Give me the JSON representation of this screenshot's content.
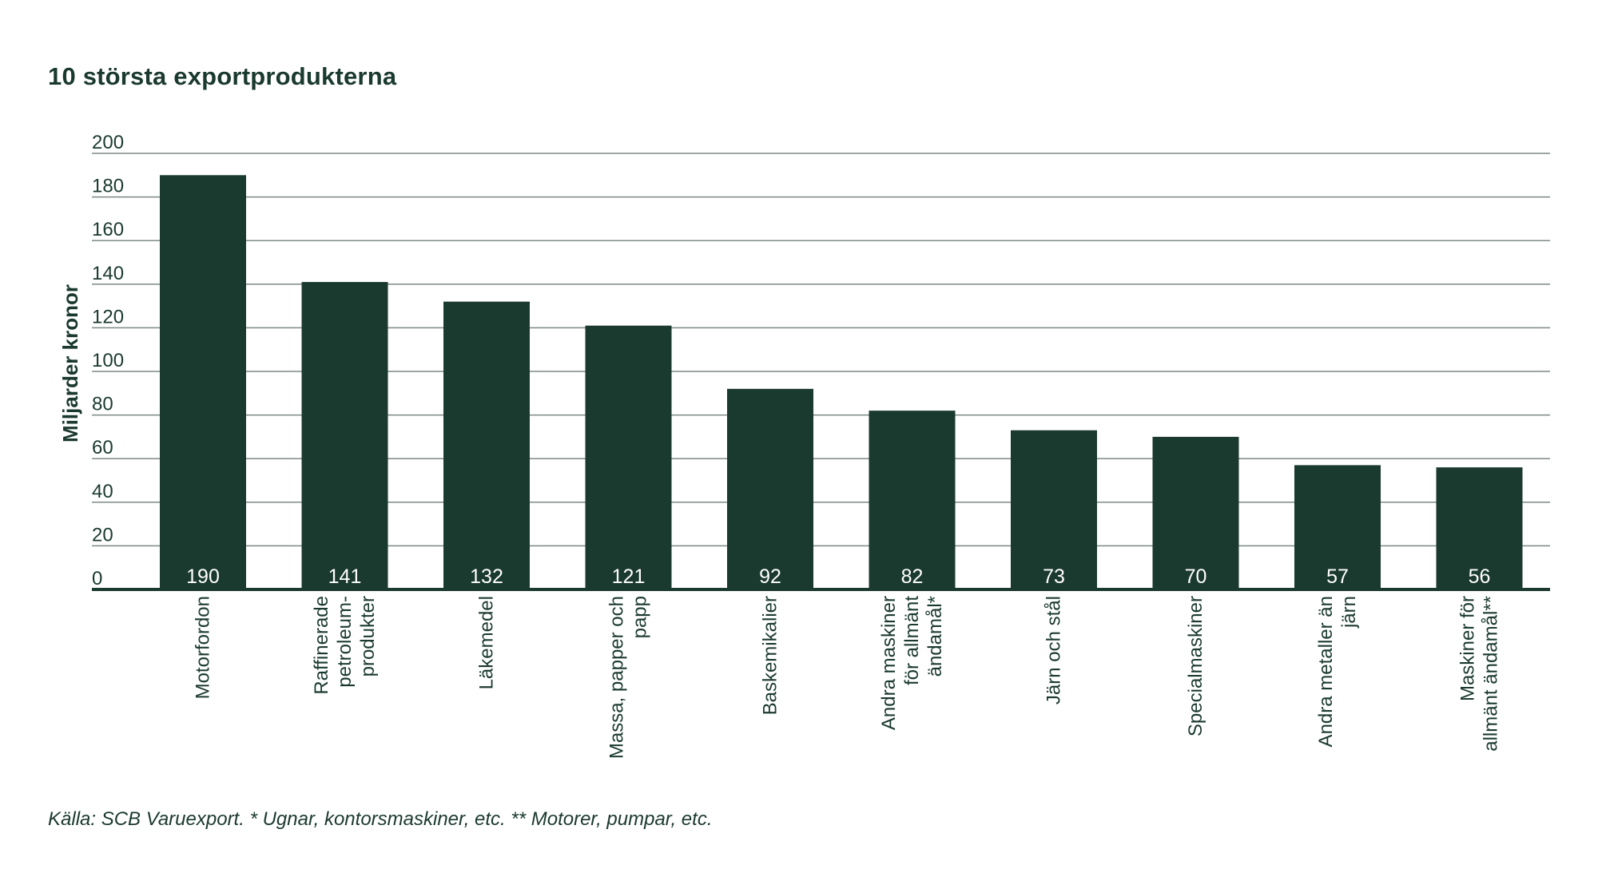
{
  "chart_data": {
    "type": "bar",
    "title": "10 största exportprodukterna",
    "ylabel": "Miljarder kronor",
    "xlabel": "",
    "ylim": [
      0,
      200
    ],
    "yticks": [
      0,
      20,
      40,
      60,
      80,
      100,
      120,
      140,
      160,
      180,
      200
    ],
    "grid": true,
    "categories": [
      [
        "Motorfordon"
      ],
      [
        "Raffinerade",
        "petroleum-",
        "produkter"
      ],
      [
        "Läkemedel"
      ],
      [
        "Massa, papper och",
        "papp"
      ],
      [
        "Baskemikalier"
      ],
      [
        "Andra maskiner",
        "för allmänt",
        "ändamål*"
      ],
      [
        "Järn och stål"
      ],
      [
        "Specialmaskiner"
      ],
      [
        "Andra metaller än",
        "järn"
      ],
      [
        "Maskiner för",
        "allmänt ändamål**"
      ]
    ],
    "values": [
      190,
      141,
      132,
      121,
      92,
      82,
      73,
      70,
      57,
      56
    ],
    "bar_color": "#1b3a2f",
    "grid_color": "#7d8a84",
    "text_color": "#1b3a2f"
  },
  "footnote": "Källa:  SCB Varuexport. * Ugnar, kontorsmaskiner, etc. ** Motorer, pumpar, etc."
}
